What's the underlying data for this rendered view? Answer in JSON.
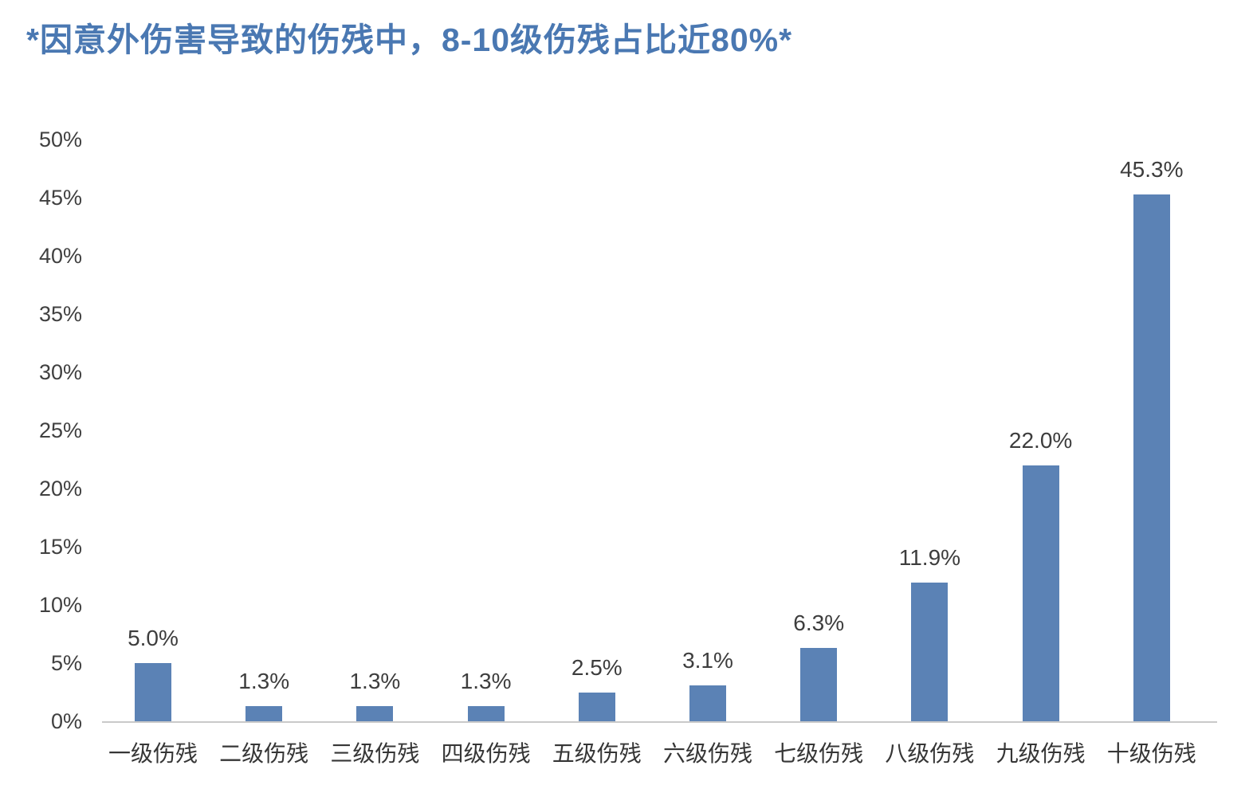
{
  "chart_data": {
    "type": "bar",
    "title": "*因意外伤害导致的伤残中，8-10级伤残占比近80%*",
    "title_color": "#4a78b2",
    "categories": [
      "一级伤残",
      "二级伤残",
      "三级伤残",
      "四级伤残",
      "五级伤残",
      "六级伤残",
      "七级伤残",
      "八级伤残",
      "九级伤残",
      "十级伤残"
    ],
    "values": [
      5.0,
      1.3,
      1.3,
      1.3,
      2.5,
      3.1,
      6.3,
      11.9,
      22.0,
      45.3
    ],
    "data_labels": [
      "5.0%",
      "1.3%",
      "1.3%",
      "1.3%",
      "2.5%",
      "3.1%",
      "6.3%",
      "11.9%",
      "22.0%",
      "45.3%"
    ],
    "y_ticks": [
      {
        "label": "0%",
        "value": 0
      },
      {
        "label": "5%",
        "value": 5
      },
      {
        "label": "10%",
        "value": 10
      },
      {
        "label": "15%",
        "value": 15
      },
      {
        "label": "20%",
        "value": 20
      },
      {
        "label": "25%",
        "value": 25
      },
      {
        "label": "30%",
        "value": 30
      },
      {
        "label": "35%",
        "value": 35
      },
      {
        "label": "40%",
        "value": 40
      },
      {
        "label": "45%",
        "value": 45
      },
      {
        "label": "50%",
        "value": 50
      }
    ],
    "ylim": [
      0,
      50
    ],
    "xlabel": "",
    "ylabel": "",
    "bar_color": "#5b82b5",
    "axis_line_color": "#c9c9c9",
    "grid": false,
    "legend": false
  }
}
